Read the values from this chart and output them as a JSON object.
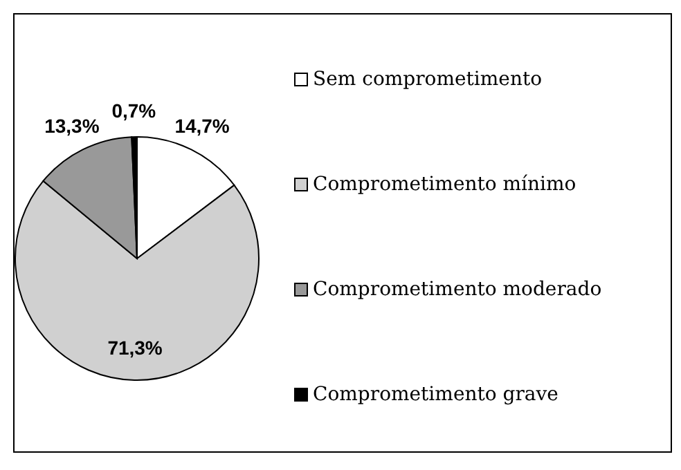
{
  "chart_data": {
    "type": "pie",
    "categories": [
      "Sem comprometimento",
      "Comprometimento mínimo",
      "Comprometimento moderado",
      "Comprometimento grave"
    ],
    "values": [
      14.7,
      71.3,
      13.3,
      0.7
    ],
    "colors": [
      "#ffffff",
      "#d0d0d0",
      "#999999",
      "#000000"
    ],
    "value_labels": [
      "14,7%",
      "71,3%",
      "13,3%",
      "0,7%"
    ],
    "legend": "right"
  }
}
